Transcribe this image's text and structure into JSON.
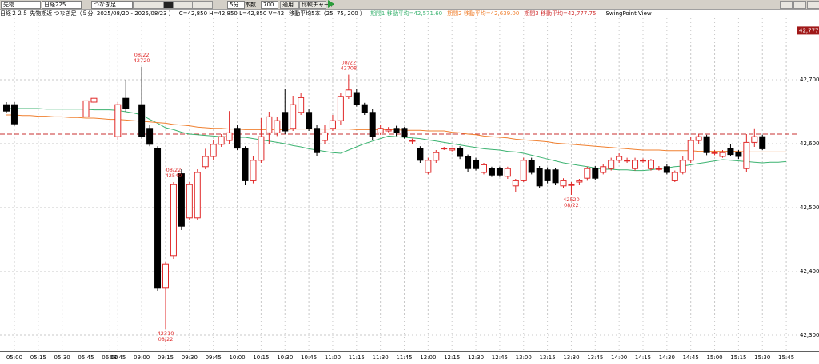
{
  "toolbar": {
    "market": "先物",
    "index": "日経225",
    "mode": "つなぎ足",
    "interval": "5分",
    "count_label": "本数",
    "count": "700",
    "apply": "適用",
    "compare": "比較チャート"
  },
  "header": {
    "title": "日経２２５ 先物期近 つなぎ足（５分, 2025/08/20 - 2025/08/23 ）",
    "ohlcv": "C=42,850 H=42,850 L=42,850 V=42",
    "ma_settings": "移動平均5本（25, 75, 200 ）",
    "view": "SwingPoint View"
  },
  "chart_data": {
    "type": "candlestick",
    "legend": [
      {
        "text": "期間1 移動平均=42,571.60",
        "color": "#3cb371"
      },
      {
        "text": "期間2 移動平均=42,639.00",
        "color": "#f08030"
      },
      {
        "text": "期間3 移動平均=42,777.75",
        "color": "#d03030"
      }
    ],
    "categories": [
      null,
      "05:00",
      null,
      null,
      "05:15",
      null,
      null,
      "05:30",
      null,
      null,
      "05:45",
      null,
      null,
      "06:00",
      "08:45",
      null,
      null,
      "09:00",
      null,
      null,
      "09:15",
      null,
      null,
      "09:30",
      null,
      null,
      "09:45",
      null,
      null,
      "10:00",
      null,
      null,
      "10:15",
      null,
      null,
      "10:30",
      null,
      null,
      "10:45",
      null,
      null,
      "11:00",
      null,
      null,
      "11:15",
      null,
      null,
      "11:30",
      null,
      null,
      "11:45",
      null,
      null,
      "12:00",
      null,
      null,
      "12:15",
      null,
      null,
      "12:30",
      null,
      null,
      "12:45",
      null,
      null,
      "13:00",
      null,
      null,
      "13:15",
      null,
      null,
      "13:30",
      null,
      null,
      "13:45",
      null,
      null,
      "14:00",
      null,
      null,
      "14:15",
      null,
      null,
      "14:30",
      null,
      null,
      "14:45",
      null,
      null,
      "15:00",
      null,
      null,
      "15:15",
      null,
      null,
      "15:30",
      null,
      null,
      "15:45"
    ],
    "open": [
      42661,
      42661,
      null,
      null,
      null,
      null,
      null,
      null,
      null,
      null,
      42642,
      42665,
      null,
      null,
      42611,
      42671,
      null,
      42661,
      42624,
      42593,
      42374,
      42424,
      42553,
      42484,
      42484,
      42564,
      42580,
      42599,
      42605,
      42624,
      42593,
      42542,
      42574,
      42617,
      42617,
      42649,
      42624,
      42649,
      42649,
      42624,
      42605,
      42624,
      42636,
      42674,
      42680,
      42661,
      42649,
      42617,
      42620,
      42624,
      42624,
      42605,
      42593,
      42555,
      42574,
      42593,
      42590,
      42593,
      42580,
      42574,
      42555,
      42561,
      42561,
      42549,
      42534,
      42542,
      42574,
      42561,
      42559,
      42559,
      42534,
      42536,
      42540,
      42546,
      42561,
      42555,
      42561,
      42574,
      42574,
      42561,
      42574,
      42561,
      42561,
      42564,
      42542,
      42555,
      42574,
      42605,
      42611,
      42586,
      42580,
      42592,
      42586,
      42561,
      42602,
      42611,
      null,
      null,
      null
    ],
    "high": [
      42665,
      42665,
      null,
      null,
      null,
      null,
      null,
      null,
      null,
      null,
      42672,
      42672,
      null,
      null,
      42665,
      42700,
      null,
      42720,
      42630,
      42596,
      42415,
      42540,
      42560,
      42540,
      42560,
      42592,
      42605,
      42615,
      42651,
      42630,
      42596,
      42580,
      42640,
      42650,
      42642,
      42685,
      42675,
      42680,
      42655,
      42630,
      42630,
      42645,
      42680,
      42708,
      42686,
      42664,
      42655,
      42630,
      42626,
      42628,
      42626,
      42608,
      42596,
      42578,
      42590,
      42595,
      42594,
      42596,
      42583,
      42578,
      42570,
      42564,
      42564,
      42564,
      42545,
      42578,
      42578,
      42565,
      42563,
      42562,
      42546,
      42540,
      42545,
      42564,
      42565,
      42568,
      42578,
      42585,
      42578,
      42578,
      42577,
      42576,
      42565,
      42568,
      42558,
      42580,
      42611,
      42615,
      42614,
      42590,
      42590,
      42600,
      42590,
      42615,
      42624,
      42614,
      null,
      null,
      null
    ],
    "low": [
      42648,
      42628,
      null,
      null,
      null,
      null,
      null,
      null,
      null,
      null,
      42638,
      42663,
      null,
      null,
      42605,
      42650,
      null,
      42608,
      42596,
      42370,
      42310,
      42420,
      42465,
      42480,
      42480,
      42560,
      42575,
      42595,
      42600,
      42590,
      42535,
      42538,
      42570,
      42600,
      42612,
      42615,
      42620,
      42645,
      42620,
      42580,
      42600,
      42620,
      42630,
      42670,
      42658,
      42645,
      42605,
      42614,
      42618,
      42612,
      42608,
      42600,
      42570,
      42552,
      42570,
      42590,
      42588,
      42576,
      42556,
      42558,
      42552,
      42548,
      42548,
      42545,
      42525,
      42540,
      42552,
      42530,
      42538,
      42535,
      42530,
      42520,
      42535,
      42542,
      42543,
      42552,
      42558,
      42570,
      42570,
      42558,
      42570,
      42558,
      42558,
      42552,
      42540,
      42552,
      42570,
      42600,
      42582,
      42582,
      42578,
      42580,
      42576,
      42555,
      42595,
      42590,
      null,
      null,
      null
    ],
    "close": [
      42651,
      42631,
      null,
      null,
      null,
      null,
      null,
      null,
      null,
      null,
      42667,
      42671,
      null,
      null,
      42661,
      42655,
      null,
      42611,
      42599,
      42374,
      42411,
      42536,
      42471,
      42536,
      42555,
      42580,
      42599,
      42611,
      42617,
      42593,
      42542,
      42574,
      42611,
      42642,
      42636,
      42620,
      42661,
      42672,
      42624,
      42586,
      42617,
      42636,
      42674,
      42684,
      42661,
      42649,
      42611,
      42624,
      42622,
      42617,
      42611,
      42605,
      42574,
      42574,
      42586,
      42593,
      42592,
      42580,
      42561,
      42561,
      42567,
      42551,
      42551,
      42561,
      42542,
      42574,
      42555,
      42534,
      42542,
      42539,
      42542,
      42536,
      42542,
      42561,
      42546,
      42564,
      42574,
      42580,
      42574,
      42574,
      42574,
      42574,
      42561,
      42555,
      42555,
      42574,
      42605,
      42611,
      42586,
      42586,
      42586,
      42583,
      42580,
      42602,
      42611,
      42592,
      null,
      null,
      null
    ],
    "up_color": "#e02828",
    "down_color": "#000000",
    "ma_series": [
      {
        "color": "#3cb371",
        "values": [
          42655,
          42655,
          42655,
          42655,
          42655,
          42654,
          42654,
          42654,
          42654,
          42654,
          42654,
          42653,
          42653,
          42653,
          42652,
          42650,
          42648,
          42645,
          42638,
          42632,
          42625,
          42622,
          42618,
          42615,
          42614,
          42613,
          42612,
          42611,
          42611,
          42610,
          42610,
          42608,
          42606,
          42604,
          42602,
          42600,
          42597,
          42595,
          42592,
          42590,
          42588,
          42586,
          42585,
          42590,
          42595,
          42600,
          42604,
          42608,
          42612,
          42611,
          42610,
          42609,
          42608,
          42606,
          42604,
          42602,
          42600,
          42598,
          42596,
          42594,
          42592,
          42591,
          42590,
          42588,
          42587,
          42585,
          42582,
          42579,
          42576,
          42573,
          42570,
          42568,
          42566,
          42564,
          42562,
          42560,
          42560,
          42559,
          42559,
          42558,
          42558,
          42559,
          42561,
          42562,
          42564,
          42565,
          42567,
          42569,
          42571,
          42573,
          42575,
          42574,
          42573,
          42572,
          42571,
          42570,
          42571,
          42571,
          42572
        ]
      },
      {
        "color": "#f08030",
        "values": [
          42645,
          42645,
          42644,
          42644,
          42643,
          42643,
          42642,
          42642,
          42641,
          42641,
          42640,
          42640,
          42639,
          42638,
          42638,
          42637,
          42636,
          42635,
          42634,
          42633,
          42632,
          42630,
          42629,
          42628,
          42626,
          42625,
          42624,
          42624,
          42623,
          42623,
          42622,
          42622,
          42622,
          42622,
          42622,
          42622,
          42623,
          42623,
          42623,
          42623,
          42623,
          42623,
          42623,
          42623,
          42622,
          42622,
          42622,
          42622,
          42622,
          42622,
          42621,
          42621,
          42621,
          42620,
          42620,
          42620,
          42618,
          42617,
          42615,
          42614,
          42612,
          42611,
          42610,
          42609,
          42607,
          42606,
          42605,
          42604,
          42603,
          42601,
          42600,
          42599,
          42598,
          42597,
          42596,
          42595,
          42594,
          42593,
          42592,
          42591,
          42590,
          42590,
          42590,
          42589,
          42589,
          42589,
          42589,
          42588,
          42588,
          42588,
          42588,
          42588,
          42588,
          42587,
          42587,
          42587,
          42587,
          42587,
          42587
        ]
      }
    ],
    "reference_line": {
      "value": 42615,
      "color": "#c83030"
    },
    "price_tag": {
      "value": 42777,
      "label": "42,777",
      "color": "#a01818"
    },
    "annotations": [
      {
        "date": "08/22",
        "value": 42720
      },
      {
        "date": "08/22",
        "value": 42708
      },
      {
        "date": "08/22",
        "value": 42310
      },
      {
        "date": "08/22",
        "value": 42520
      },
      {
        "date": "08/22",
        "value": 42540
      }
    ],
    "annotation_color": "#e02828",
    "ylim": [
      42275,
      42797.5
    ],
    "yticks": [
      {
        "value": 42300,
        "label": "42,300"
      },
      {
        "value": 42400,
        "label": "42,400"
      },
      {
        "value": 42500,
        "label": "42,500"
      },
      {
        "value": 42600,
        "label": "42,600"
      },
      {
        "value": 42700,
        "label": "42,700"
      }
    ],
    "grid": true
  }
}
